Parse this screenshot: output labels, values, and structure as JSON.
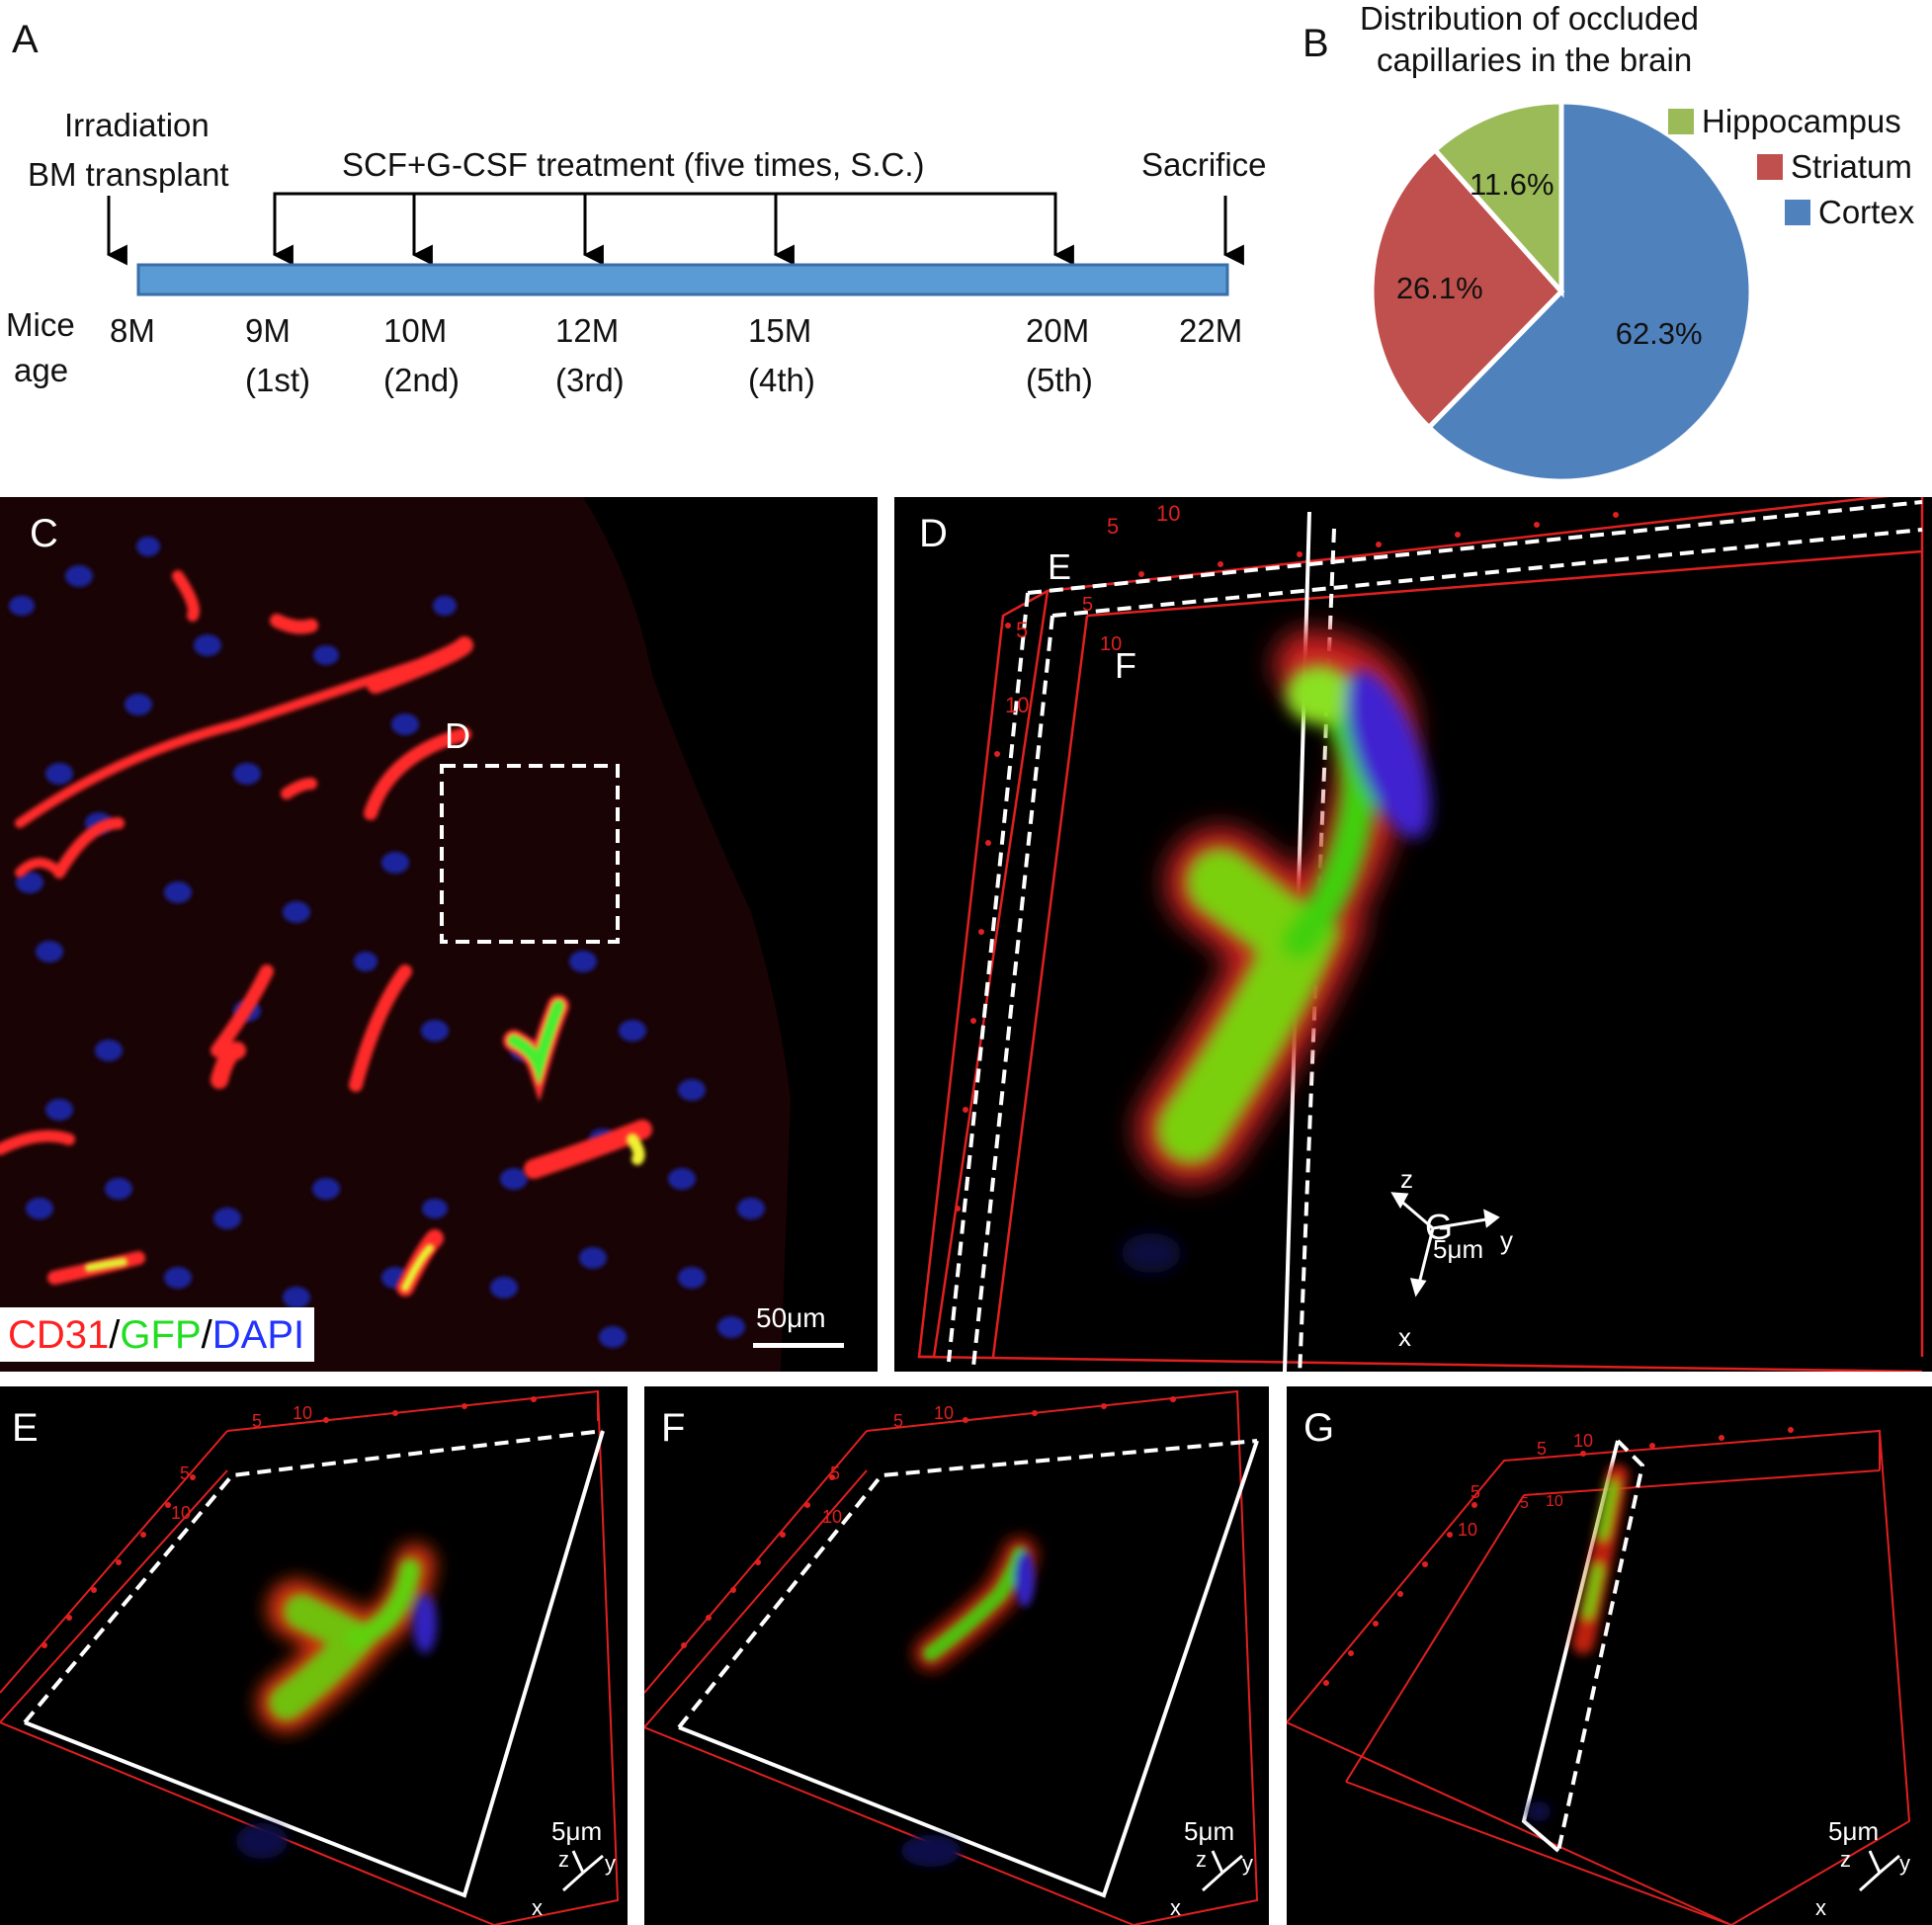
{
  "panel_a": {
    "letter": "A",
    "events": {
      "irradiation": "Irradiation",
      "bm_transplant": "BM transplant",
      "treatment": "SCF+G-CSF treatment (five times, S.C.)",
      "sacrifice": "Sacrifice"
    },
    "axis_label_line1": "Mice",
    "axis_label_line2": "age",
    "timepoints": [
      {
        "age": "8M",
        "dose": ""
      },
      {
        "age": "9M",
        "dose": "(1st)"
      },
      {
        "age": "10M",
        "dose": "(2nd)"
      },
      {
        "age": "12M",
        "dose": "(3rd)"
      },
      {
        "age": "15M",
        "dose": "(4th)"
      },
      {
        "age": "20M",
        "dose": "(5th)"
      },
      {
        "age": "22M",
        "dose": ""
      }
    ],
    "bar_color": "#5b9bd5"
  },
  "chart_data": {
    "type": "pie",
    "title_line1": "Distribution of occluded",
    "title_line2": "capillaries in the brain",
    "slices": [
      {
        "label": "Cortex",
        "value": 62.3,
        "display": "62.3%",
        "color": "#4f81bd"
      },
      {
        "label": "Striatum",
        "value": 26.1,
        "display": "26.1%",
        "color": "#c0504d"
      },
      {
        "label": "Hippocampus",
        "value": 11.6,
        "display": "11.6%",
        "color": "#9bbb59"
      }
    ],
    "legend": [
      "Hippocampus",
      "Striatum",
      "Cortex"
    ],
    "legend_position": "top-right"
  },
  "panel_b": {
    "letter": "B"
  },
  "panel_c": {
    "letter": "C",
    "inset_label": "D",
    "stain_cd31": "CD31",
    "stain_sep1": "/",
    "stain_gfp": "GFP",
    "stain_sep2": "/",
    "stain_dapi": "DAPI",
    "scale": "50μm",
    "colors": {
      "cd31": "#ff2020",
      "gfp": "#22dd22",
      "dapi": "#2233ff"
    }
  },
  "panel_d": {
    "letter": "D",
    "slice_e": "E",
    "slice_f": "F",
    "slice_g": "G",
    "tick_5a": "5",
    "tick_10a": "10",
    "tick_5b": "5",
    "tick_10b": "10",
    "tick_5c": "5",
    "tick_10c": "10",
    "scale": "5μm",
    "axis_x": "x",
    "axis_y": "y",
    "axis_z": "z"
  },
  "panel_e": {
    "letter": "E",
    "tick_5a": "5",
    "tick_10a": "10",
    "tick_5b": "5",
    "tick_10b": "10",
    "scale": "5μm",
    "axis_x": "x",
    "axis_y": "y",
    "axis_z": "z"
  },
  "panel_f": {
    "letter": "F",
    "tick_5a": "5",
    "tick_10a": "10",
    "tick_5b": "5",
    "tick_10b": "10",
    "scale": "5μm",
    "axis_x": "x",
    "axis_y": "y",
    "axis_z": "z"
  },
  "panel_g": {
    "letter": "G",
    "tick_5a": "5",
    "tick_10a": "10",
    "tick_5b": "5",
    "tick_10b": "10",
    "tick_5c": "5",
    "tick_10c": "10",
    "scale": "5μm",
    "axis_x": "x",
    "axis_y": "y",
    "axis_z": "z"
  }
}
